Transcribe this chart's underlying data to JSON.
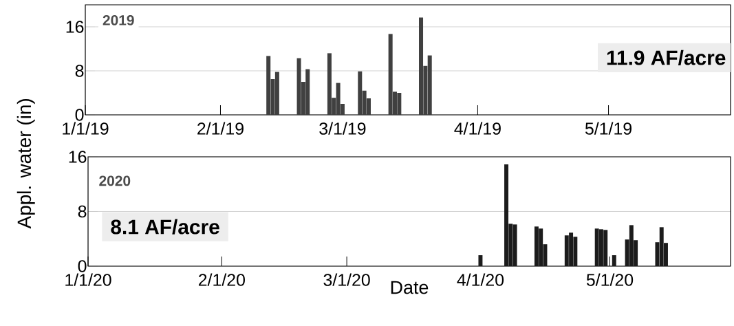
{
  "chart_data": [
    {
      "type": "bar",
      "ylabel": "Appl. water (in)",
      "annotations": [
        "2019",
        "11.9 AF/acre"
      ],
      "x": [
        "2019-02-12",
        "2019-02-13",
        "2019-02-14",
        "2019-02-19",
        "2019-02-20",
        "2019-02-21",
        "2019-02-26",
        "2019-02-27",
        "2019-02-28",
        "2019-03-01",
        "2019-03-05",
        "2019-03-06",
        "2019-03-07",
        "2019-03-12",
        "2019-03-13",
        "2019-03-14",
        "2019-03-19",
        "2019-03-20",
        "2019-03-21"
      ],
      "values": [
        10.7,
        6.5,
        7.8,
        10.3,
        6.0,
        8.3,
        11.2,
        3.1,
        5.8,
        2.0,
        7.9,
        4.4,
        3.0,
        14.7,
        4.2,
        4.0,
        17.7,
        8.9,
        10.8
      ],
      "color": "#404040",
      "xlim": [
        "2019-01-01",
        "2019-05-29"
      ],
      "xticks": [
        {
          "value": "2019-01-01",
          "label": "1/1/19"
        },
        {
          "value": "2019-02-01",
          "label": "2/1/19"
        },
        {
          "value": "2019-03-01",
          "label": "3/1/19"
        },
        {
          "value": "2019-04-01",
          "label": "4/1/19"
        },
        {
          "value": "2019-05-01",
          "label": "5/1/19"
        }
      ],
      "ylim": [
        0,
        20
      ],
      "yticks": [
        0,
        8,
        16
      ],
      "grid": "y"
    },
    {
      "type": "bar",
      "xlabel": "Date",
      "annotations": [
        "2020",
        "8.1 AF/acre"
      ],
      "x": [
        "2020-04-01",
        "2020-04-07",
        "2020-04-08",
        "2020-04-09",
        "2020-04-14",
        "2020-04-15",
        "2020-04-16",
        "2020-04-21",
        "2020-04-22",
        "2020-04-23",
        "2020-04-28",
        "2020-04-29",
        "2020-04-30",
        "2020-05-02",
        "2020-05-05",
        "2020-05-06",
        "2020-05-07",
        "2020-05-12",
        "2020-05-13",
        "2020-05-14"
      ],
      "values": [
        1.6,
        14.9,
        6.2,
        6.1,
        5.8,
        5.5,
        3.2,
        4.5,
        4.9,
        4.3,
        5.5,
        5.4,
        5.3,
        1.6,
        3.9,
        6.0,
        3.8,
        3.5,
        5.7,
        3.4
      ],
      "color": "#1c1c1c",
      "xlim": [
        "2020-01-01",
        "2020-05-29"
      ],
      "xticks": [
        {
          "value": "2020-01-01",
          "label": "1/1/20"
        },
        {
          "value": "2020-02-01",
          "label": "2/1/20"
        },
        {
          "value": "2020-03-01",
          "label": "3/1/20"
        },
        {
          "value": "2020-04-01",
          "label": "4/1/20"
        },
        {
          "value": "2020-05-01",
          "label": "5/1/20"
        }
      ],
      "ylim": [
        0,
        16
      ],
      "yticks": [
        0,
        8,
        16
      ],
      "grid": "y"
    }
  ]
}
